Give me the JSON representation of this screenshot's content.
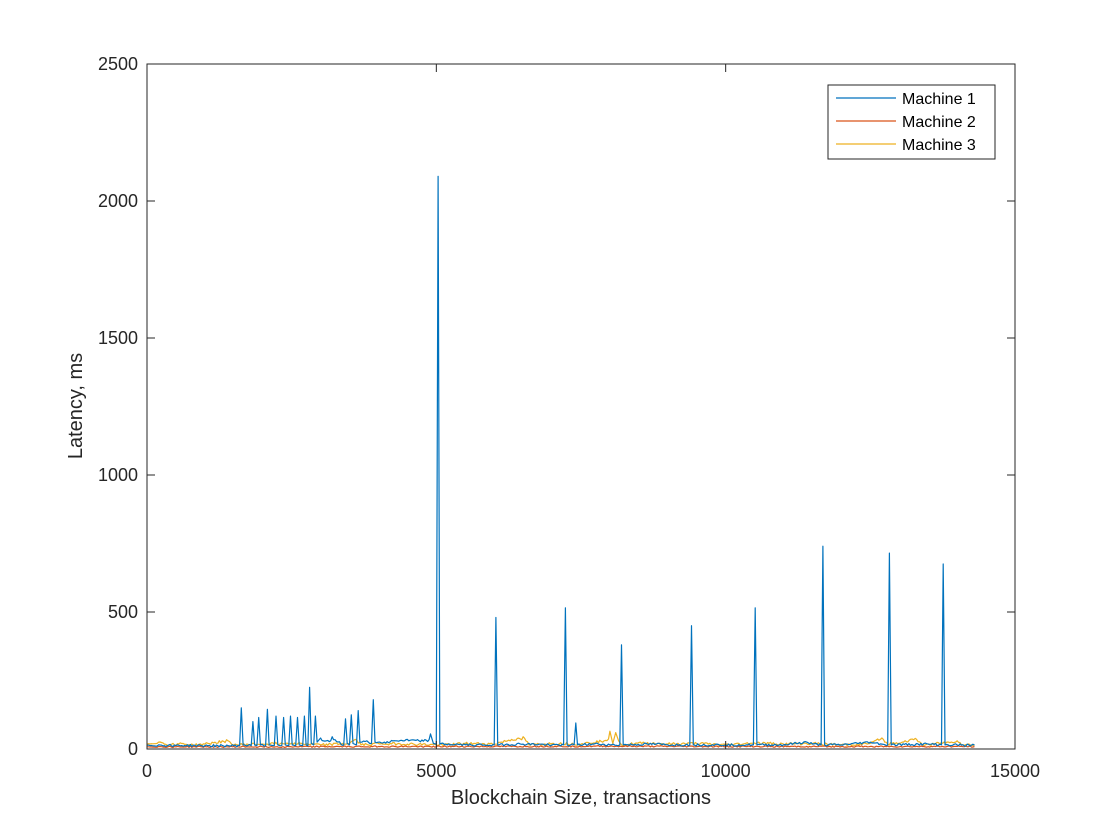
{
  "chart_data": {
    "type": "line",
    "title": "",
    "xlabel": "Blockchain Size, transactions",
    "ylabel": "Latency, ms",
    "xlim": [
      0,
      15000
    ],
    "ylim": [
      0,
      2500
    ],
    "xticks": [
      0,
      5000,
      10000,
      15000
    ],
    "yticks": [
      0,
      500,
      1000,
      1500,
      2000,
      2500
    ],
    "grid": false,
    "legend_position": "top-right",
    "series": [
      {
        "name": "Machine 1",
        "color": "#0072BD",
        "baseline": 14,
        "x_end": 14300,
        "points": [
          [
            0,
            14
          ],
          [
            1000,
            12
          ],
          [
            1600,
            12
          ],
          [
            1630,
            150
          ],
          [
            1660,
            15
          ],
          [
            1800,
            12
          ],
          [
            1830,
            100
          ],
          [
            1860,
            15
          ],
          [
            1900,
            12
          ],
          [
            1930,
            115
          ],
          [
            1960,
            15
          ],
          [
            2050,
            12
          ],
          [
            2080,
            145
          ],
          [
            2110,
            15
          ],
          [
            2200,
            12
          ],
          [
            2230,
            120
          ],
          [
            2260,
            15
          ],
          [
            2330,
            12
          ],
          [
            2360,
            115
          ],
          [
            2390,
            15
          ],
          [
            2450,
            12
          ],
          [
            2480,
            120
          ],
          [
            2510,
            15
          ],
          [
            2570,
            12
          ],
          [
            2600,
            115
          ],
          [
            2630,
            15
          ],
          [
            2690,
            12
          ],
          [
            2720,
            120
          ],
          [
            2750,
            15
          ],
          [
            2780,
            12
          ],
          [
            2810,
            225
          ],
          [
            2840,
            20
          ],
          [
            2880,
            15
          ],
          [
            2910,
            120
          ],
          [
            2940,
            25
          ],
          [
            3000,
            40
          ],
          [
            3100,
            30
          ],
          [
            3200,
            45
          ],
          [
            3300,
            25
          ],
          [
            3400,
            15
          ],
          [
            3430,
            110
          ],
          [
            3460,
            20
          ],
          [
            3500,
            15
          ],
          [
            3530,
            125
          ],
          [
            3560,
            20
          ],
          [
            3620,
            15
          ],
          [
            3650,
            140
          ],
          [
            3680,
            25
          ],
          [
            3800,
            30
          ],
          [
            3850,
            20
          ],
          [
            3880,
            20
          ],
          [
            3910,
            180
          ],
          [
            3940,
            25
          ],
          [
            4100,
            25
          ],
          [
            4300,
            30
          ],
          [
            4500,
            35
          ],
          [
            4700,
            30
          ],
          [
            4900,
            55
          ],
          [
            4950,
            20
          ],
          [
            5000,
            18
          ],
          [
            5030,
            2090
          ],
          [
            5060,
            18
          ],
          [
            5500,
            15
          ],
          [
            6000,
            15
          ],
          [
            6030,
            480
          ],
          [
            6060,
            15
          ],
          [
            6500,
            18
          ],
          [
            7000,
            15
          ],
          [
            7200,
            15
          ],
          [
            7230,
            515
          ],
          [
            7260,
            15
          ],
          [
            7380,
            15
          ],
          [
            7410,
            95
          ],
          [
            7440,
            15
          ],
          [
            7800,
            18
          ],
          [
            8000,
            15
          ],
          [
            8170,
            15
          ],
          [
            8200,
            380
          ],
          [
            8230,
            15
          ],
          [
            8800,
            18
          ],
          [
            9000,
            15
          ],
          [
            9380,
            15
          ],
          [
            9410,
            450
          ],
          [
            9440,
            15
          ],
          [
            10000,
            15
          ],
          [
            10480,
            15
          ],
          [
            10510,
            515
          ],
          [
            10540,
            15
          ],
          [
            11000,
            15
          ],
          [
            11400,
            25
          ],
          [
            11500,
            18
          ],
          [
            11650,
            15
          ],
          [
            11680,
            740
          ],
          [
            11710,
            15
          ],
          [
            12000,
            15
          ],
          [
            12500,
            25
          ],
          [
            12700,
            18
          ],
          [
            12800,
            15
          ],
          [
            12830,
            715
          ],
          [
            12860,
            15
          ],
          [
            13500,
            18
          ],
          [
            13730,
            15
          ],
          [
            13760,
            675
          ],
          [
            13790,
            15
          ],
          [
            14000,
            15
          ],
          [
            14300,
            14
          ]
        ]
      },
      {
        "name": "Machine 2",
        "color": "#D95319",
        "baseline": 8,
        "x_end": 14300,
        "points": [
          [
            0,
            8
          ],
          [
            2000,
            8
          ],
          [
            4000,
            9
          ],
          [
            6000,
            9
          ],
          [
            8000,
            10
          ],
          [
            10000,
            9
          ],
          [
            12000,
            9
          ],
          [
            14300,
            9
          ]
        ]
      },
      {
        "name": "Machine 3",
        "color": "#EDB120",
        "baseline": 16,
        "x_end": 14300,
        "points": [
          [
            0,
            18
          ],
          [
            200,
            25
          ],
          [
            400,
            15
          ],
          [
            600,
            20
          ],
          [
            800,
            14
          ],
          [
            1000,
            18
          ],
          [
            1400,
            30
          ],
          [
            1500,
            15
          ],
          [
            2000,
            18
          ],
          [
            2500,
            22
          ],
          [
            3000,
            15
          ],
          [
            3500,
            20
          ],
          [
            3600,
            35
          ],
          [
            3700,
            15
          ],
          [
            4000,
            20
          ],
          [
            4500,
            18
          ],
          [
            5000,
            15
          ],
          [
            5500,
            20
          ],
          [
            6000,
            18
          ],
          [
            6500,
            45
          ],
          [
            6600,
            15
          ],
          [
            7000,
            20
          ],
          [
            7500,
            18
          ],
          [
            7900,
            30
          ],
          [
            8000,
            65
          ],
          [
            8050,
            20
          ],
          [
            8100,
            60
          ],
          [
            8150,
            30
          ],
          [
            8200,
            15
          ],
          [
            8600,
            22
          ],
          [
            9000,
            18
          ],
          [
            9500,
            20
          ],
          [
            10000,
            15
          ],
          [
            10500,
            22
          ],
          [
            11000,
            18
          ],
          [
            11500,
            20
          ],
          [
            12000,
            15
          ],
          [
            12500,
            20
          ],
          [
            12700,
            40
          ],
          [
            12800,
            18
          ],
          [
            13300,
            35
          ],
          [
            13400,
            15
          ],
          [
            13900,
            25
          ],
          [
            14000,
            30
          ],
          [
            14100,
            15
          ],
          [
            14300,
            16
          ]
        ]
      }
    ]
  }
}
